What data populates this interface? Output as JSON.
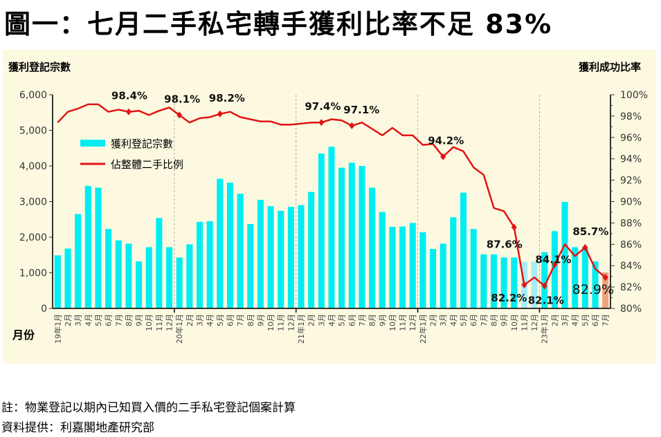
{
  "title": "圖一：七月二手私宅轉手獲利比率不足 83%",
  "notes": {
    "note": "註：物業登記以期內已知買入價的二手私宅登記個案計算",
    "source": "資料提供：利嘉閣地產研究部"
  },
  "chart_data": {
    "type": "bar+line",
    "left_axis_title": "獲利登記宗數",
    "right_axis_title": "獲利成功比率",
    "x_axis_title": "月份",
    "ylim_left": [
      0,
      6000
    ],
    "left_ticks": [
      "0",
      "1,000",
      "2,000",
      "3,000",
      "4,000",
      "5,000",
      "6,000"
    ],
    "ylim_right": [
      80,
      100
    ],
    "right_ticks": [
      "80%",
      "82%",
      "84%",
      "86%",
      "88%",
      "90%",
      "92%",
      "94%",
      "96%",
      "98%",
      "100%"
    ],
    "legend_placement": "upper-left",
    "categories": [
      "19年1月",
      "2月",
      "3月",
      "4月",
      "5月",
      "6月",
      "7月",
      "8月",
      "9月",
      "10月",
      "11月",
      "12月",
      "20年1月",
      "2月",
      "3月",
      "4月",
      "5月",
      "6月",
      "7月",
      "8月",
      "9月",
      "10月",
      "11月",
      "12月",
      "21年1月",
      "2月",
      "3月",
      "4月",
      "5月",
      "6月",
      "7月",
      "8月",
      "9月",
      "10月",
      "11月",
      "12月",
      "22年1月",
      "2月",
      "3月",
      "4月",
      "5月",
      "6月",
      "7月",
      "8月",
      "9月",
      "10月",
      "11月",
      "12月",
      "23年1月",
      "2月",
      "3月",
      "4月",
      "5月",
      "6月",
      "7月"
    ],
    "series": [
      {
        "name": "獲利登記宗數",
        "type": "bar",
        "axis": "left",
        "color": "#00eef2",
        "highlight_colors": {
          "46": "#a6eef6",
          "47": "#a6eef6",
          "54": "#eea27e"
        },
        "values": [
          1490,
          1680,
          2650,
          3440,
          3390,
          2230,
          1910,
          1820,
          1320,
          1720,
          2540,
          1720,
          1430,
          1800,
          2430,
          2450,
          3640,
          3530,
          3220,
          2370,
          3050,
          2870,
          2740,
          2850,
          2900,
          3270,
          4350,
          4540,
          3950,
          4090,
          4000,
          3390,
          2710,
          2290,
          2300,
          2400,
          2140,
          1670,
          1820,
          2560,
          3250,
          2230,
          1520,
          1520,
          1430,
          1430,
          1310,
          1310,
          1580,
          2170,
          2990,
          1720,
          1700,
          1320,
          1010
        ]
      },
      {
        "name": "佔整體二手比例",
        "type": "line",
        "axis": "right",
        "color": "#e01414",
        "values": [
          97.4,
          98.4,
          98.7,
          99.1,
          99.1,
          98.4,
          98.6,
          98.4,
          98.5,
          98.1,
          98.5,
          98.8,
          98.1,
          97.4,
          97.8,
          97.9,
          98.2,
          98.4,
          97.9,
          97.7,
          97.5,
          97.5,
          97.2,
          97.2,
          97.3,
          97.4,
          97.4,
          97.7,
          97.6,
          97.1,
          97.4,
          96.8,
          96.2,
          96.9,
          96.2,
          96.2,
          95.3,
          95.4,
          94.2,
          95.1,
          94.7,
          93.2,
          92.5,
          89.4,
          89.1,
          87.6,
          82.2,
          82.9,
          82.1,
          84.1,
          86.0,
          84.9,
          85.7,
          83.7,
          82.9
        ]
      }
    ],
    "annotations": [
      {
        "index": 7,
        "text": "98.4%"
      },
      {
        "index": 12,
        "text": "98.1%"
      },
      {
        "index": 16,
        "text": "98.2%"
      },
      {
        "index": 26,
        "text": "97.4%"
      },
      {
        "index": 29,
        "text": "97.1%"
      },
      {
        "index": 38,
        "text": "94.2%"
      },
      {
        "index": 45,
        "text": "87.6%"
      },
      {
        "index": 46,
        "text": "82.2%"
      },
      {
        "index": 48,
        "text": "82.1%"
      },
      {
        "index": 49,
        "text": "84.1%"
      },
      {
        "index": 52,
        "text": "85.7%"
      },
      {
        "index": 54,
        "text": "82.9%"
      }
    ]
  }
}
